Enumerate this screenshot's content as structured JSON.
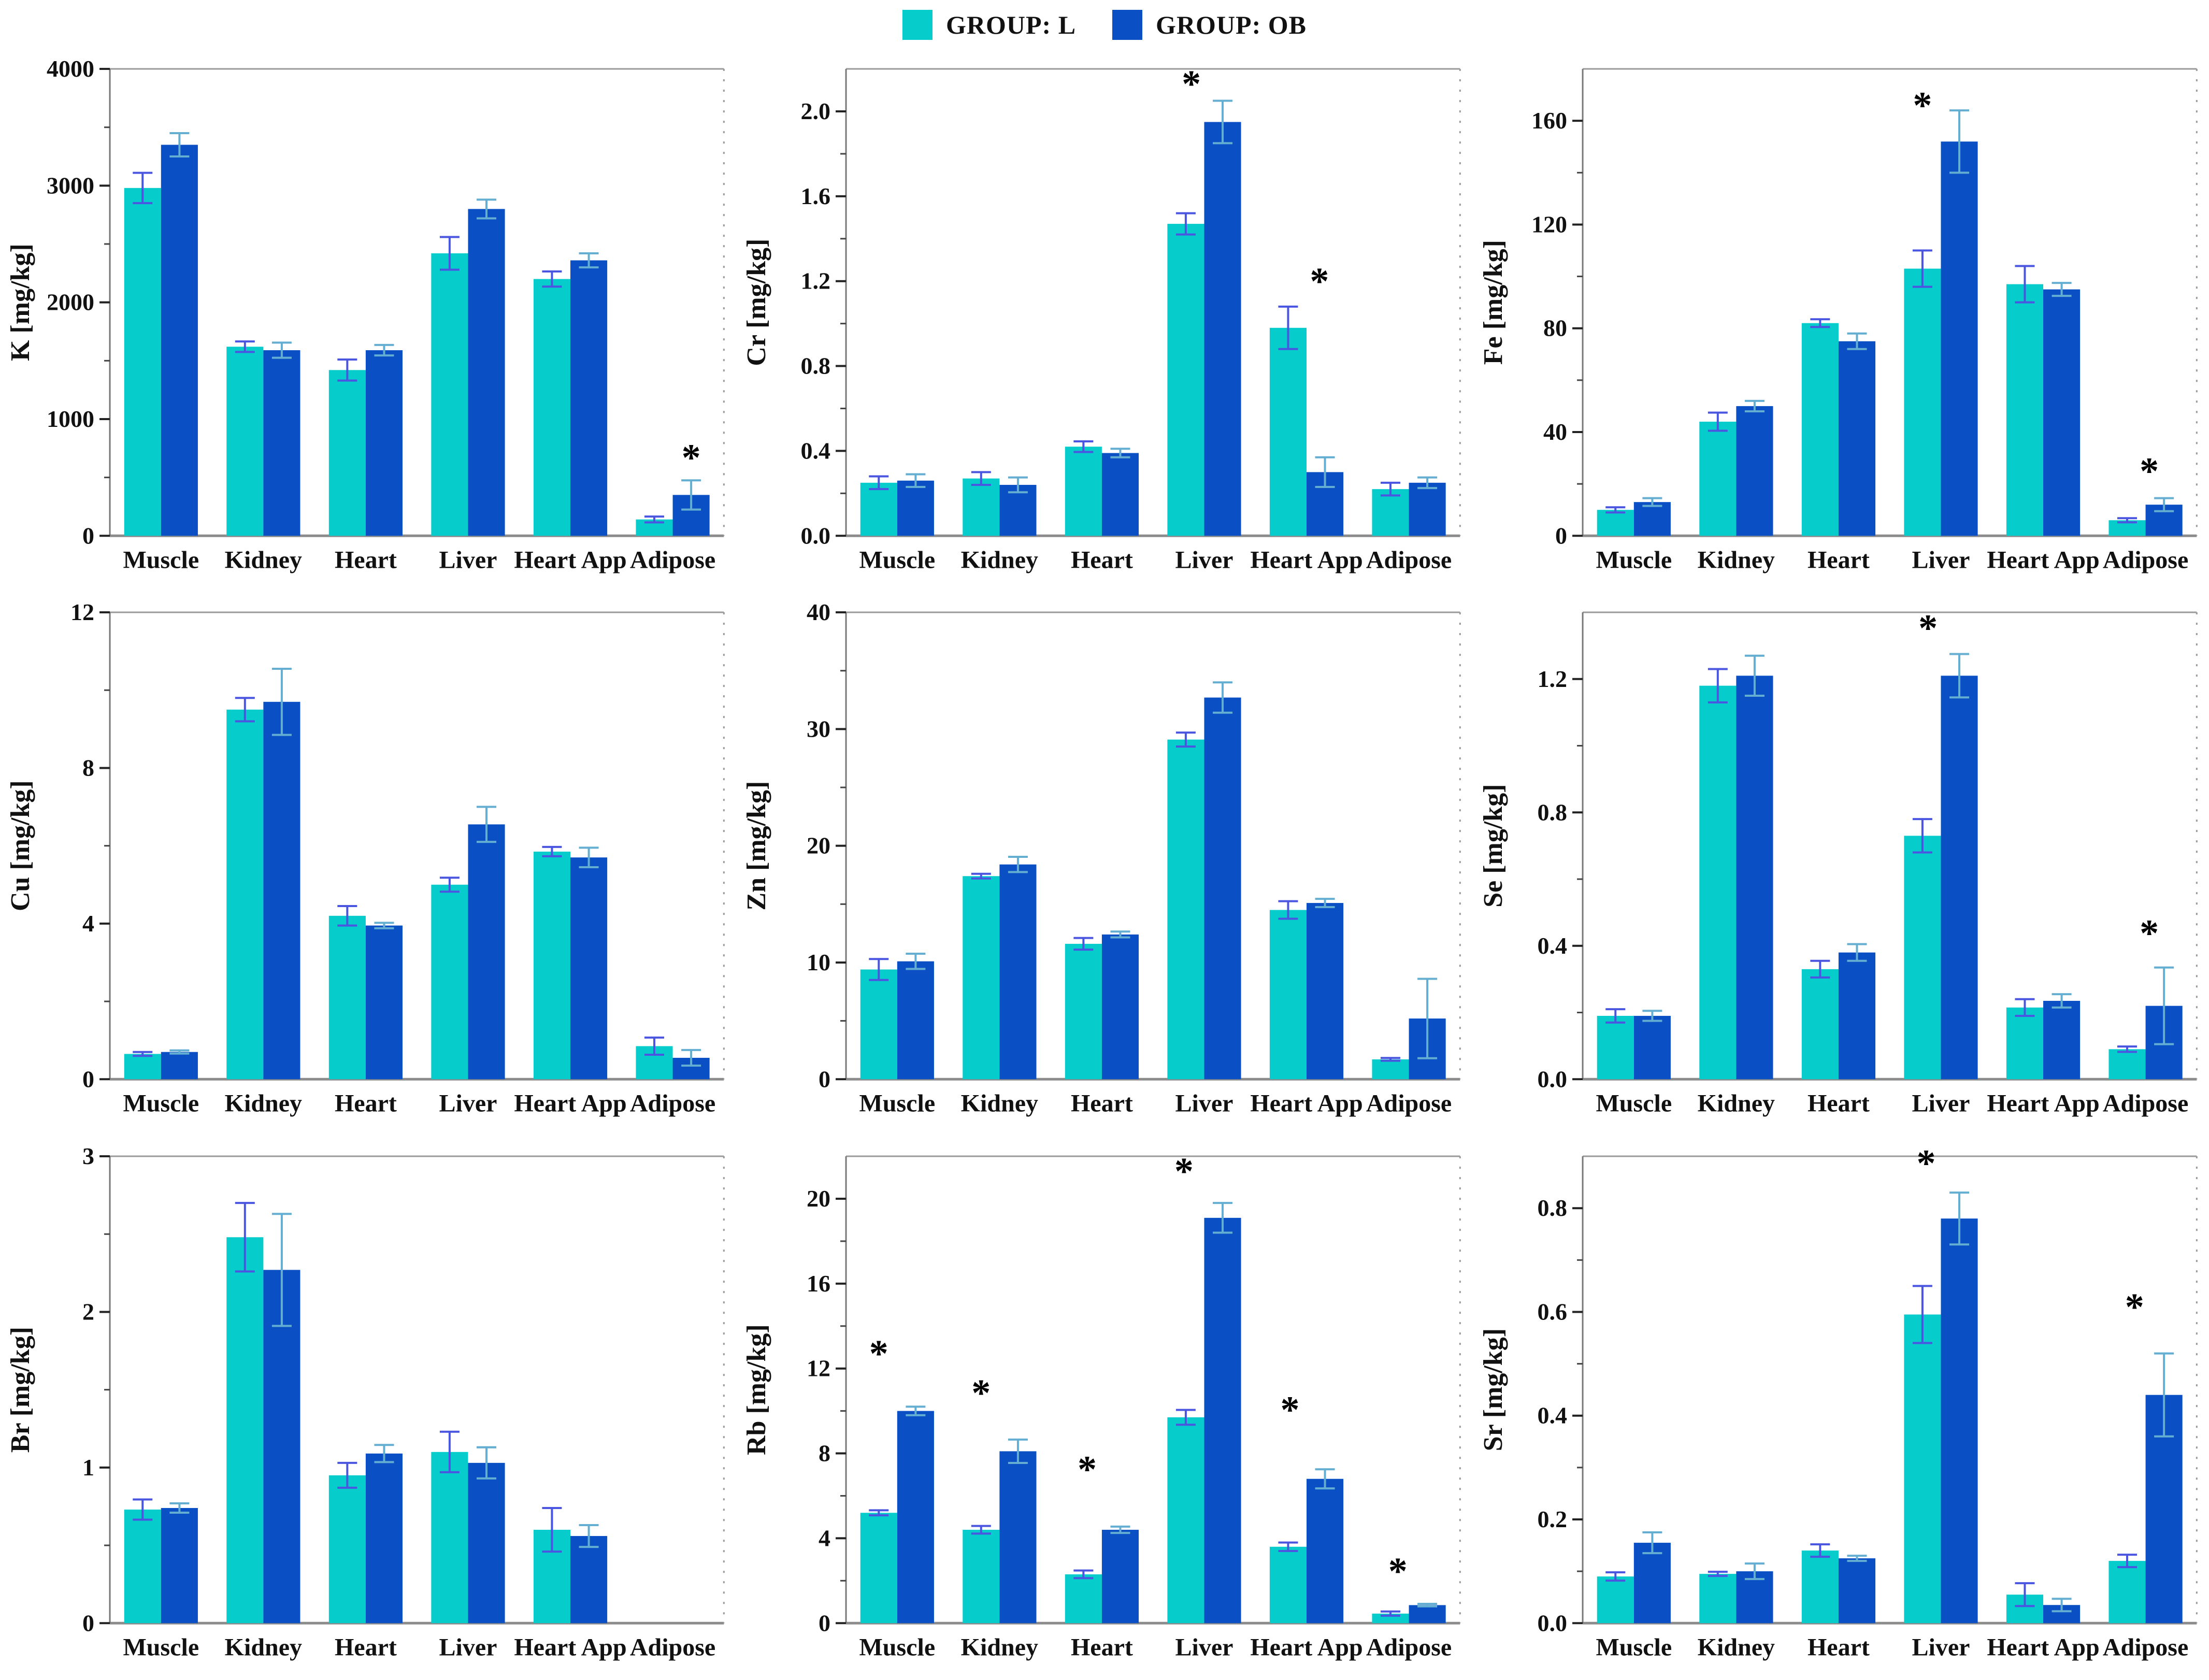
{
  "legend": {
    "items": [
      {
        "label": "GROUP: L",
        "color": "#07cccc"
      },
      {
        "label": "GROUP: OB",
        "color": "#0a50c4"
      }
    ]
  },
  "style_colors": {
    "bar_L": "#07cccc",
    "bar_OB": "#0a50c4",
    "err_L": "#4a55e0",
    "err_OB": "#64aed2",
    "spine": "#9a9a9a",
    "tick": "#222222"
  },
  "chart_data": [
    {
      "id": "K",
      "type": "bar",
      "ylabel": "K [mg/kg]",
      "categories": [
        "Muscle",
        "Kidney",
        "Heart",
        "Liver",
        "Heart App",
        "Adipose"
      ],
      "ylim": [
        0,
        4000
      ],
      "yticks": [
        0,
        1000,
        2000,
        3000,
        4000
      ],
      "ytick_decimals": 0,
      "series": [
        {
          "name": "GROUP: L",
          "values": [
            2980,
            1620,
            1420,
            2420,
            2200,
            140
          ],
          "errors": [
            130,
            45,
            90,
            140,
            65,
            25
          ]
        },
        {
          "name": "GROUP: OB",
          "values": [
            3350,
            1590,
            1590,
            2800,
            2360,
            350
          ],
          "errors": [
            100,
            65,
            45,
            80,
            60,
            125
          ]
        }
      ],
      "sig": [
        {
          "cat": "Adipose",
          "y": 560,
          "dx": 0.5
        }
      ]
    },
    {
      "id": "Cr",
      "type": "bar",
      "ylabel": "Cr [mg/kg]",
      "categories": [
        "Muscle",
        "Kidney",
        "Heart",
        "Liver",
        "Heart App",
        "Adipose"
      ],
      "ylim": [
        0,
        2.2
      ],
      "yticks": [
        0.0,
        0.4,
        0.8,
        1.2,
        1.6,
        2.0
      ],
      "ytick_decimals": 1,
      "series": [
        {
          "name": "GROUP: L",
          "values": [
            0.25,
            0.27,
            0.42,
            1.47,
            0.98,
            0.22
          ],
          "errors": [
            0.03,
            0.03,
            0.025,
            0.05,
            0.1,
            0.03
          ]
        },
        {
          "name": "GROUP: OB",
          "values": [
            0.26,
            0.24,
            0.39,
            1.95,
            0.3,
            0.25
          ],
          "errors": [
            0.03,
            0.035,
            0.02,
            0.1,
            0.07,
            0.025
          ]
        }
      ],
      "sig": [
        {
          "cat": "Liver",
          "y": 2.07,
          "dx": -0.35
        },
        {
          "cat": "Heart App",
          "y": 1.14,
          "dx": 0.35
        }
      ]
    },
    {
      "id": "Fe",
      "type": "bar",
      "ylabel": "Fe [mg/kg]",
      "categories": [
        "Muscle",
        "Kidney",
        "Heart",
        "Liver",
        "Heart App",
        "Adipose"
      ],
      "ylim": [
        0,
        180
      ],
      "yticks": [
        0,
        40,
        80,
        120,
        160
      ],
      "ytick_decimals": 0,
      "series": [
        {
          "name": "GROUP: L",
          "values": [
            10,
            44,
            82,
            103,
            97,
            6
          ],
          "errors": [
            1,
            3.5,
            1.5,
            7,
            7,
            0.8
          ]
        },
        {
          "name": "GROUP: OB",
          "values": [
            13,
            50,
            75,
            152,
            95,
            12
          ],
          "errors": [
            1.5,
            2,
            3,
            12,
            2.5,
            2.5
          ]
        }
      ],
      "sig": [
        {
          "cat": "Liver",
          "y": 161,
          "dx": -0.5
        },
        {
          "cat": "Adipose",
          "y": 20,
          "dx": 0.1
        }
      ]
    },
    {
      "id": "Cu",
      "type": "bar",
      "ylabel": "Cu [mg/kg]",
      "categories": [
        "Muscle",
        "Kidney",
        "Heart",
        "Liver",
        "Heart App",
        "Adipose"
      ],
      "ylim": [
        0,
        12
      ],
      "yticks": [
        0,
        4,
        8,
        12
      ],
      "ytick_decimals": 0,
      "series": [
        {
          "name": "GROUP: L",
          "values": [
            0.65,
            9.5,
            4.2,
            5.0,
            5.85,
            0.85
          ],
          "errors": [
            0.05,
            0.3,
            0.25,
            0.18,
            0.12,
            0.22
          ]
        },
        {
          "name": "GROUP: OB",
          "values": [
            0.7,
            9.7,
            3.95,
            6.55,
            5.7,
            0.55
          ],
          "errors": [
            0.04,
            0.85,
            0.07,
            0.45,
            0.25,
            0.2
          ]
        }
      ],
      "sig": []
    },
    {
      "id": "Zn",
      "type": "bar",
      "ylabel": "Zn [mg/kg]",
      "categories": [
        "Muscle",
        "Kidney",
        "Heart",
        "Liver",
        "Heart App",
        "Adipose"
      ],
      "ylim": [
        0,
        40
      ],
      "yticks": [
        0,
        10,
        20,
        30,
        40
      ],
      "ytick_decimals": 0,
      "series": [
        {
          "name": "GROUP: L",
          "values": [
            9.4,
            17.4,
            11.6,
            29.1,
            14.5,
            1.7
          ],
          "errors": [
            0.9,
            0.2,
            0.5,
            0.6,
            0.75,
            0.12
          ]
        },
        {
          "name": "GROUP: OB",
          "values": [
            10.1,
            18.4,
            12.4,
            32.7,
            15.1,
            5.2
          ],
          "errors": [
            0.65,
            0.65,
            0.25,
            1.3,
            0.35,
            3.4
          ]
        }
      ],
      "sig": []
    },
    {
      "id": "Se",
      "type": "bar",
      "ylabel": "Se [mg/kg]",
      "categories": [
        "Muscle",
        "Kidney",
        "Heart",
        "Liver",
        "Heart App",
        "Adipose"
      ],
      "ylim": [
        0,
        1.4
      ],
      "yticks": [
        0.0,
        0.4,
        0.8,
        1.2
      ],
      "ytick_decimals": 1,
      "series": [
        {
          "name": "GROUP: L",
          "values": [
            0.19,
            1.18,
            0.33,
            0.73,
            0.215,
            0.09
          ],
          "errors": [
            0.02,
            0.05,
            0.025,
            0.05,
            0.025,
            0.008
          ]
        },
        {
          "name": "GROUP: OB",
          "values": [
            0.19,
            1.21,
            0.38,
            1.21,
            0.235,
            0.22
          ],
          "errors": [
            0.015,
            0.06,
            0.025,
            0.065,
            0.02,
            0.115
          ]
        }
      ],
      "sig": [
        {
          "cat": "Liver",
          "y": 1.315,
          "dx": -0.35
        },
        {
          "cat": "Adipose",
          "y": 0.4,
          "dx": 0.1
        }
      ]
    },
    {
      "id": "Br",
      "type": "bar",
      "ylabel": "Br [mg/kg]",
      "categories": [
        "Muscle",
        "Kidney",
        "Heart",
        "Liver",
        "Heart App",
        "Adipose"
      ],
      "ylim": [
        0,
        3
      ],
      "yticks": [
        0,
        1,
        2,
        3
      ],
      "ytick_decimals": 0,
      "series": [
        {
          "name": "GROUP: L",
          "values": [
            0.73,
            2.48,
            0.95,
            1.1,
            0.6,
            0
          ],
          "errors": [
            0.065,
            0.22,
            0.08,
            0.13,
            0.14,
            0
          ]
        },
        {
          "name": "GROUP: OB",
          "values": [
            0.74,
            2.27,
            1.09,
            1.03,
            0.56,
            0
          ],
          "errors": [
            0.03,
            0.36,
            0.055,
            0.1,
            0.07,
            0
          ]
        }
      ],
      "sig": []
    },
    {
      "id": "Rb",
      "type": "bar",
      "ylabel": "Rb [mg/kg]",
      "categories": [
        "Muscle",
        "Kidney",
        "Heart",
        "Liver",
        "Heart App",
        "Adipose"
      ],
      "ylim": [
        0,
        22
      ],
      "yticks": [
        0,
        4,
        8,
        12,
        16,
        20
      ],
      "ytick_decimals": 0,
      "series": [
        {
          "name": "GROUP: L",
          "values": [
            5.2,
            4.4,
            2.3,
            9.7,
            3.6,
            0.45
          ],
          "errors": [
            0.12,
            0.18,
            0.18,
            0.35,
            0.2,
            0.1
          ]
        },
        {
          "name": "GROUP: OB",
          "values": [
            10.0,
            8.1,
            4.4,
            19.1,
            6.8,
            0.85
          ],
          "errors": [
            0.2,
            0.55,
            0.15,
            0.7,
            0.45,
            0.06
          ]
        }
      ],
      "sig": [
        {
          "cat": "Muscle",
          "y": 12.1,
          "dx": -0.5
        },
        {
          "cat": "Kidney",
          "y": 10.25,
          "dx": -0.5
        },
        {
          "cat": "Heart",
          "y": 6.65,
          "dx": -0.4
        },
        {
          "cat": "Liver",
          "y": 20.7,
          "dx": -0.55
        },
        {
          "cat": "Heart App",
          "y": 9.45,
          "dx": -0.45
        },
        {
          "cat": "Adipose",
          "y": 1.85,
          "dx": -0.3
        }
      ]
    },
    {
      "id": "Sr",
      "type": "bar",
      "ylabel": "Sr [mg/kg]",
      "categories": [
        "Muscle",
        "Kidney",
        "Heart",
        "Liver",
        "Heart App",
        "Adipose"
      ],
      "ylim": [
        0,
        0.9
      ],
      "yticks": [
        0.0,
        0.2,
        0.4,
        0.6,
        0.8
      ],
      "ytick_decimals": 1,
      "series": [
        {
          "name": "GROUP: L",
          "values": [
            0.09,
            0.095,
            0.14,
            0.595,
            0.055,
            0.12
          ],
          "errors": [
            0.008,
            0.004,
            0.012,
            0.055,
            0.022,
            0.012
          ]
        },
        {
          "name": "GROUP: OB",
          "values": [
            0.155,
            0.1,
            0.125,
            0.78,
            0.035,
            0.44
          ],
          "errors": [
            0.02,
            0.015,
            0.005,
            0.05,
            0.012,
            0.08
          ]
        }
      ],
      "sig": [
        {
          "cat": "Liver",
          "y": 0.862,
          "dx": -0.4
        },
        {
          "cat": "Adipose",
          "y": 0.585,
          "dx": -0.3
        }
      ]
    }
  ]
}
